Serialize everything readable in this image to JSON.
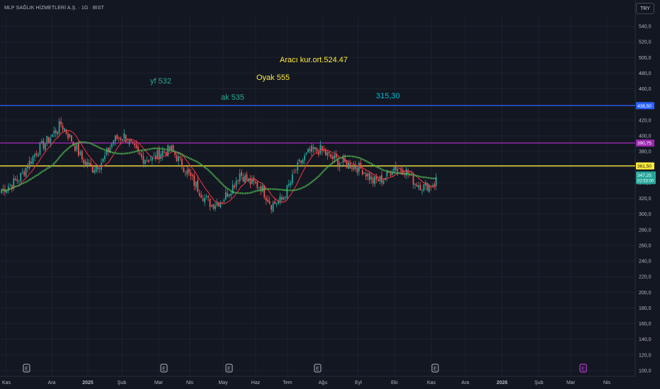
{
  "header": {
    "symbol_title": "MLP SAĞLIK HİZMETLERİ A.Ş. · 1G · BIST",
    "currency": "TRY"
  },
  "colors": {
    "background": "#131722",
    "grid": "#1e222d",
    "axis_text": "#b2b5be",
    "up": "#26a69a",
    "down": "#ef5350",
    "ma_fast": "#f23645",
    "ma_slow": "#4caf50",
    "line_blue": "#2962ff",
    "line_purple": "#9c27b0",
    "line_yellow": "#ffeb3b",
    "label_yellow": "#ffeb3b",
    "label_teal": "#22ab94",
    "label_cyan": "#00bcd4"
  },
  "chart_data": {
    "type": "candlestick",
    "ylim": [
      95,
      555
    ],
    "y_ticks": [
      "540,0",
      "520,0",
      "500,0",
      "480,0",
      "460,0",
      "440,0",
      "420,0",
      "400,0",
      "380,0",
      "360,0",
      "340,0",
      "320,0",
      "300,0",
      "280,0",
      "260,0",
      "240,0",
      "220,0",
      "200,0",
      "180,0",
      "160,0",
      "140,0",
      "120,0",
      "100,0"
    ],
    "y_tick_values": [
      540,
      520,
      500,
      480,
      460,
      440,
      420,
      400,
      380,
      360,
      340,
      320,
      300,
      280,
      260,
      240,
      220,
      200,
      180,
      160,
      140,
      120,
      100
    ],
    "x_ticks": [
      "Kas",
      "Ara",
      "2025",
      "Şub",
      "Mar",
      "Nis",
      "May",
      "Haz",
      "Tem",
      "Ağu",
      "Eyl",
      "Eki",
      "Kas",
      "Ara",
      "2026",
      "Şub",
      "Mar",
      "Nis"
    ],
    "horizontal_lines": [
      {
        "value": 438.5,
        "label": "438,50",
        "color": "#2962ff"
      },
      {
        "value": 390.75,
        "label": "390,75",
        "color": "#9c27b0"
      },
      {
        "value": 361.5,
        "label": "361,50",
        "color": "#ffeb3b"
      }
    ],
    "last_price": {
      "value": 347.25,
      "label": "347,25",
      "countdown": "02:53:00"
    },
    "event_markers": [
      "E",
      "E",
      "E",
      "E",
      "E",
      "E"
    ],
    "annotations": [
      {
        "text": "Aracı kur.ort.524.47",
        "price": 523
      },
      {
        "text": "Oyak 555",
        "price": 497
      },
      {
        "text": "yf 532",
        "price": 492
      },
      {
        "text": "ak 535",
        "price": 470
      },
      {
        "text": "315,30",
        "price": 472
      }
    ],
    "close_anchors": [
      [
        0,
        330
      ],
      [
        10,
        345
      ],
      [
        20,
        380
      ],
      [
        28,
        398
      ],
      [
        34,
        415
      ],
      [
        40,
        395
      ],
      [
        46,
        370
      ],
      [
        52,
        358
      ],
      [
        58,
        368
      ],
      [
        64,
        395
      ],
      [
        70,
        400
      ],
      [
        76,
        382
      ],
      [
        80,
        372
      ],
      [
        86,
        370
      ],
      [
        92,
        380
      ],
      [
        97,
        382
      ],
      [
        104,
        360
      ],
      [
        110,
        340
      ],
      [
        116,
        320
      ],
      [
        120,
        312
      ],
      [
        126,
        318
      ],
      [
        132,
        336
      ],
      [
        136,
        352
      ],
      [
        142,
        340
      ],
      [
        148,
        335
      ],
      [
        154,
        312
      ],
      [
        160,
        318
      ],
      [
        166,
        345
      ],
      [
        170,
        364
      ],
      [
        176,
        380
      ],
      [
        182,
        382
      ],
      [
        188,
        372
      ],
      [
        194,
        366
      ],
      [
        200,
        362
      ],
      [
        206,
        357
      ],
      [
        212,
        342
      ],
      [
        218,
        345
      ],
      [
        224,
        360
      ],
      [
        230,
        357
      ],
      [
        236,
        340
      ],
      [
        241,
        335
      ],
      [
        248,
        340
      ]
    ]
  }
}
